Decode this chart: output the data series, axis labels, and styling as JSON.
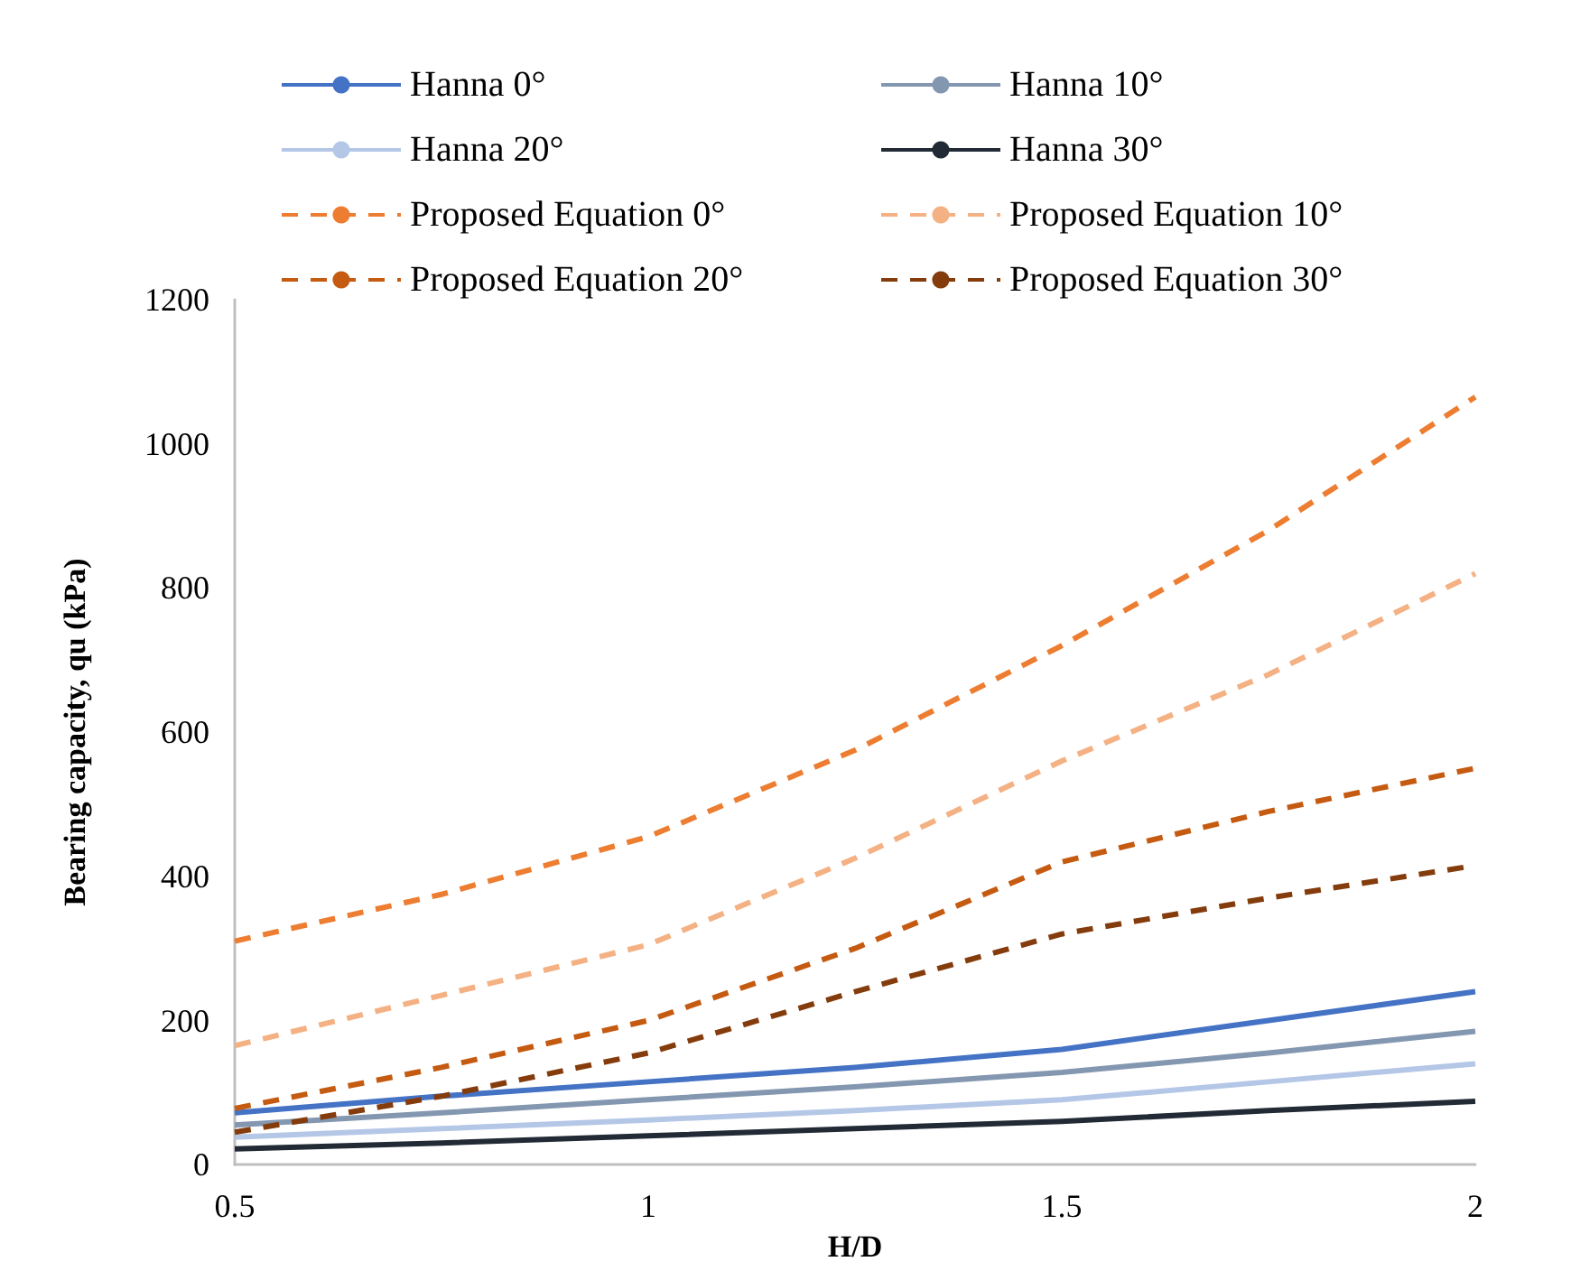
{
  "chart_data": {
    "type": "line",
    "xlabel": "H/D",
    "ylabel": "Bearing capacity, qu (kPa)",
    "x": [
      0.5,
      0.75,
      1,
      1.25,
      1.5,
      1.75,
      2
    ],
    "xlim": [
      0.5,
      2
    ],
    "xticks": [
      0.5,
      1,
      1.5,
      2
    ],
    "ylim": [
      0,
      1200
    ],
    "yticks": [
      0,
      200,
      400,
      600,
      800,
      {
        "value": 1000,
        "label": "1000"
      },
      {
        "value": 1200,
        "label": "1200"
      }
    ],
    "grid": false,
    "legend": "top",
    "marker": "none",
    "series": [
      {
        "name": "Hanna 0°",
        "color": "#4472c4",
        "line_style": "solid",
        "values": [
          72,
          95,
          115,
          135,
          160,
          200,
          240
        ]
      },
      {
        "name": "Hanna 10°",
        "color": "#8497b0",
        "line_style": "solid",
        "values": [
          55,
          72,
          90,
          108,
          128,
          155,
          185
        ]
      },
      {
        "name": "Hanna 20°",
        "color": "#b4c7e7",
        "line_style": "solid",
        "values": [
          38,
          50,
          62,
          75,
          90,
          115,
          140
        ]
      },
      {
        "name": "Hanna 30°",
        "color": "#222a35",
        "line_style": "solid",
        "values": [
          22,
          30,
          40,
          50,
          60,
          75,
          88
        ]
      },
      {
        "name": "Proposed Equation 0°",
        "color": "#ed7d31",
        "line_style": "dashed",
        "values": [
          310,
          375,
          455,
          575,
          720,
          880,
          1065
        ]
      },
      {
        "name": "Proposed Equation 10°",
        "color": "#f4b183",
        "line_style": "dashed",
        "values": [
          165,
          235,
          305,
          425,
          560,
          680,
          820
        ]
      },
      {
        "name": "Proposed Equation 20°",
        "color": "#c55a11",
        "line_style": "dashed",
        "values": [
          78,
          135,
          200,
          300,
          420,
          490,
          550
        ]
      },
      {
        "name": "Proposed Equation 30°",
        "color": "#843c0c",
        "line_style": "dashed",
        "values": [
          45,
          95,
          155,
          240,
          320,
          370,
          415
        ]
      }
    ]
  }
}
